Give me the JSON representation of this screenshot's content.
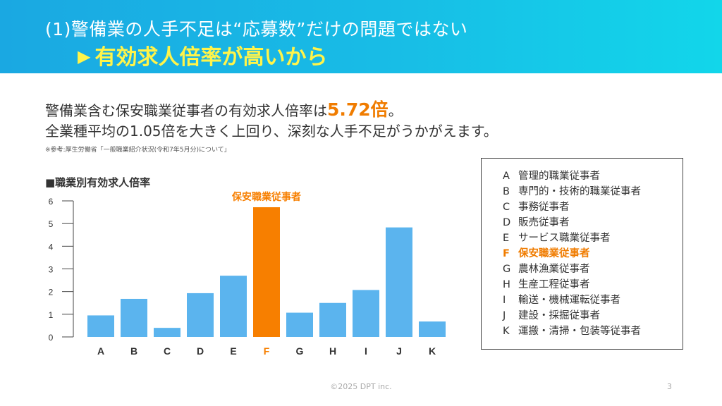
{
  "header": {
    "line1": "(1)警備業の人手不足は“応募数”だけの問題ではない",
    "arrow": "▶",
    "line2": "有効求人倍率が高いから"
  },
  "lead": {
    "line1_pre": "警備業含む保安職業従事者の有効求人倍率は",
    "line1_highlight": "5.72倍",
    "line1_post": "。",
    "line2": "全業種平均の1.05倍を大きく上回り、深刻な人手不足がうかがえます。",
    "note": "※参考:厚生労働省「一般職業紹介状況(令和7年5月分)について」"
  },
  "chart_data": {
    "type": "bar",
    "title": "■職業別有効求人倍率",
    "categories": [
      "A",
      "B",
      "C",
      "D",
      "E",
      "F",
      "G",
      "H",
      "I",
      "J",
      "K"
    ],
    "values": [
      0.95,
      1.68,
      0.4,
      1.93,
      2.7,
      5.72,
      1.07,
      1.5,
      2.07,
      4.83,
      0.68
    ],
    "ylim": [
      0,
      6
    ],
    "yticks": [
      0,
      1,
      2,
      3,
      4,
      5,
      6
    ],
    "highlight_index": 5,
    "highlight_label": "保安職業従事者",
    "colors": {
      "bar": "#5bb4ee",
      "highlight": "#f77f00",
      "axis": "#444444"
    },
    "grid": false
  },
  "legend": {
    "items": [
      {
        "code": "A",
        "label": "管理的職業従事者",
        "highlight": false
      },
      {
        "code": "B",
        "label": "専門的・技術的職業従事者",
        "highlight": false
      },
      {
        "code": "C",
        "label": "事務従事者",
        "highlight": false
      },
      {
        "code": "D",
        "label": "販売従事者",
        "highlight": false
      },
      {
        "code": "E",
        "label": "サービス職業従事者",
        "highlight": false
      },
      {
        "code": "F",
        "label": "保安職業従事者",
        "highlight": true
      },
      {
        "code": "G",
        "label": "農林漁業従事者",
        "highlight": false
      },
      {
        "code": "H",
        "label": "生産工程従事者",
        "highlight": false
      },
      {
        "code": "I",
        "label": "輸送・機械運転従事者",
        "highlight": false
      },
      {
        "code": "J",
        "label": "建設・採掘従事者",
        "highlight": false
      },
      {
        "code": "K",
        "label": "運搬・清掃・包装等従事者",
        "highlight": false
      }
    ]
  },
  "footer": {
    "copyright": "©2025 DPT inc.",
    "page": "3"
  }
}
